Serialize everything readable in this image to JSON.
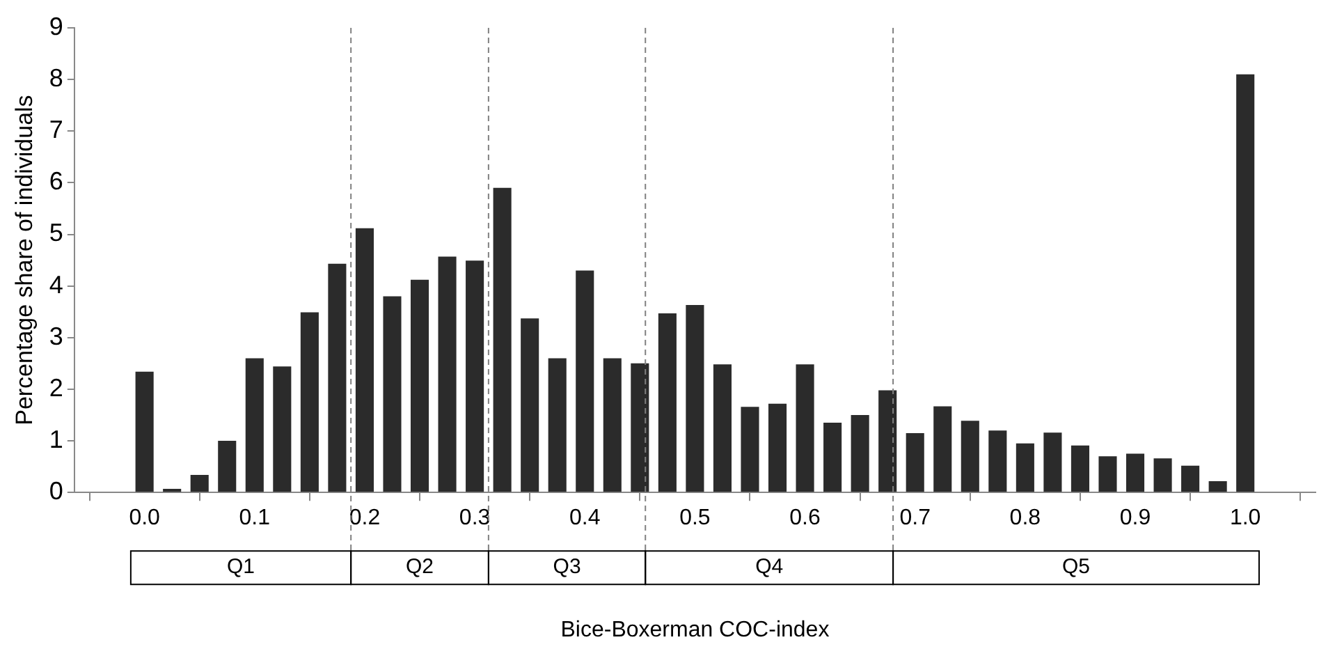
{
  "chart_data": {
    "type": "bar",
    "xlabel": "Bice-Boxerman COC-index",
    "ylabel": "Percentage share of individuals",
    "x": [
      0,
      0.025,
      0.05,
      0.075,
      0.1,
      0.125,
      0.15,
      0.175,
      0.2,
      0.225,
      0.25,
      0.275,
      0.3,
      0.325,
      0.35,
      0.375,
      0.4,
      0.425,
      0.45,
      0.475,
      0.5,
      0.525,
      0.55,
      0.575,
      0.6,
      0.625,
      0.65,
      0.675,
      0.7,
      0.725,
      0.75,
      0.775,
      0.8,
      0.825,
      0.85,
      0.875,
      0.9,
      0.925,
      0.95,
      0.975,
      1.0
    ],
    "values": [
      2.34,
      0.07,
      0.34,
      1.0,
      2.6,
      2.44,
      3.49,
      4.43,
      5.12,
      3.8,
      4.12,
      4.57,
      4.49,
      5.9,
      3.37,
      2.6,
      4.3,
      2.6,
      2.5,
      3.47,
      3.63,
      2.48,
      1.66,
      1.72,
      2.48,
      1.35,
      1.5,
      1.98,
      1.15,
      1.67,
      1.39,
      1.2,
      0.95,
      1.16,
      0.91,
      0.7,
      0.75,
      0.66,
      0.52,
      0.22,
      8.1
    ],
    "color": "#2b2b2b",
    "xlim": [
      -0.0125,
      1.0125
    ],
    "xticks": [
      {
        "value": 0,
        "label": "0.0"
      },
      0.1,
      0.2,
      0.3,
      0.4,
      0.5,
      0.6,
      0.7,
      0.8,
      0.9,
      {
        "value": 1,
        "label": "1.0"
      }
    ],
    "ylim": [
      0,
      9
    ],
    "yticks": [
      0,
      1,
      2,
      3,
      4,
      5,
      6,
      7,
      8,
      9
    ],
    "ref_lines": [
      {
        "axis": "x",
        "value": 0.1875,
        "color": "#808080",
        "line_style": "dashed"
      },
      {
        "axis": "x",
        "value": 0.3125,
        "color": "#808080",
        "line_style": "dashed"
      },
      {
        "axis": "x",
        "value": 0.455,
        "color": "#808080",
        "line_style": "dashed"
      },
      {
        "axis": "x",
        "value": 0.68,
        "color": "#808080",
        "line_style": "dashed"
      }
    ],
    "annotations": [
      "Q1",
      "Q2",
      "Q3",
      "Q4",
      "Q5"
    ],
    "grid": false,
    "legend": false
  }
}
